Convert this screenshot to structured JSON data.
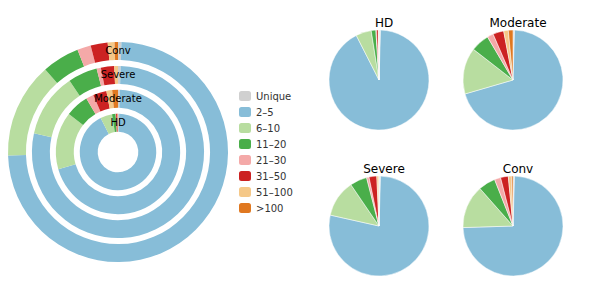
{
  "chart_data": {
    "type": "pie",
    "categories": [
      "Unique",
      "2–5",
      "6–10",
      "11–20",
      "21–30",
      "31–50",
      "51–100",
      ">100"
    ],
    "colors": [
      "#d0d0d0",
      "#87bdd8",
      "#b8dda0",
      "#4aae4a",
      "#f4a9a8",
      "#cc2222",
      "#f5c888",
      "#e07820"
    ],
    "legend": "center",
    "series": [
      {
        "name": "HD",
        "values": [
          0.005,
          0.92,
          0.05,
          0.015,
          0.002,
          0.006,
          0.002,
          0.0
        ]
      },
      {
        "name": "Moderate",
        "values": [
          0.005,
          0.7,
          0.15,
          0.06,
          0.02,
          0.035,
          0.015,
          0.015
        ]
      },
      {
        "name": "Severe",
        "values": [
          0.005,
          0.78,
          0.12,
          0.055,
          0.008,
          0.025,
          0.007,
          0.0
        ]
      },
      {
        "name": "Conv",
        "values": [
          0.005,
          0.74,
          0.14,
          0.055,
          0.02,
          0.025,
          0.01,
          0.005
        ]
      }
    ]
  }
}
